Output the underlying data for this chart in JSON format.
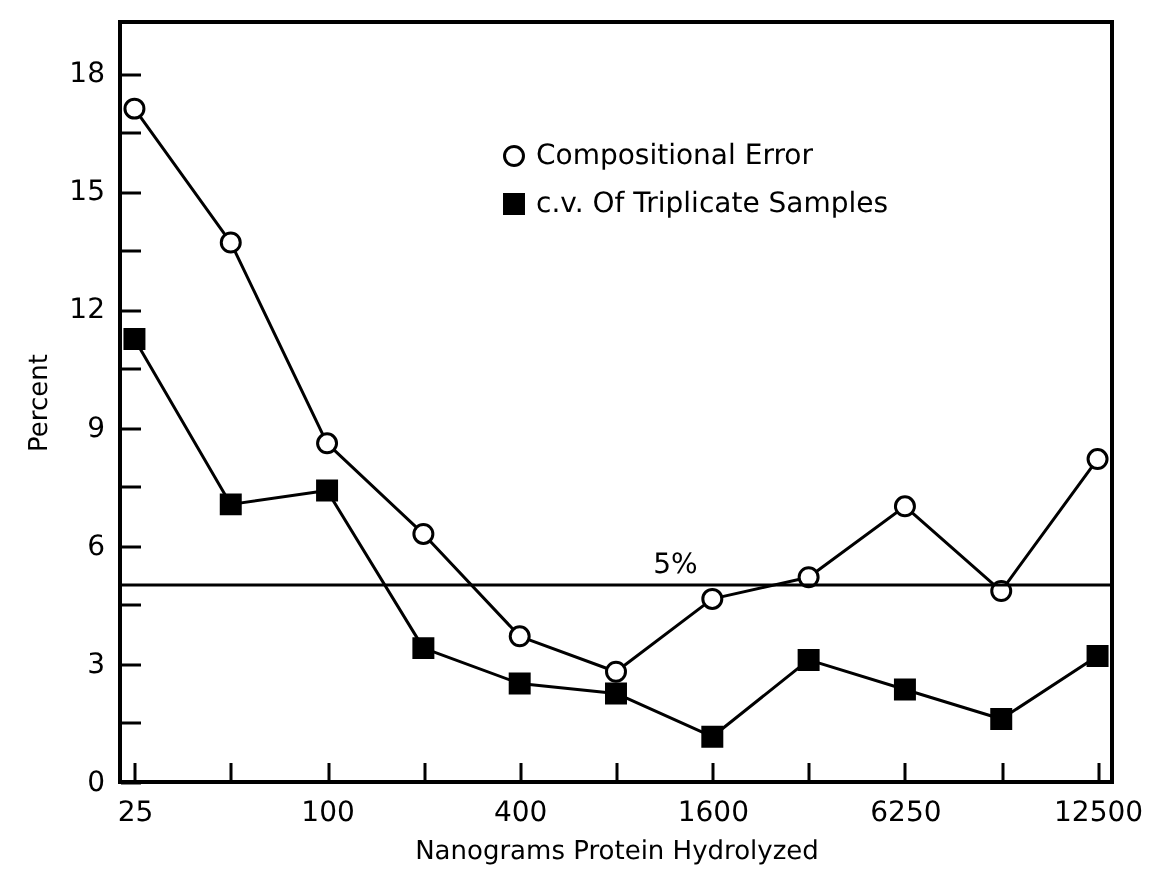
{
  "chart_data": {
    "type": "line",
    "xlabel": "Nanograms Protein Hydrolyzed",
    "ylabel": "Percent",
    "categories": [
      "25",
      null,
      "100",
      null,
      "400",
      null,
      "1600",
      null,
      "6250",
      null,
      "12500"
    ],
    "series": [
      {
        "name": "Compositional Error",
        "color": "#000000",
        "marker": "circle",
        "values": [
          17.1,
          13.7,
          8.6,
          6.3,
          3.7,
          2.8,
          4.65,
          5.2,
          7.0,
          4.85,
          8.2
        ]
      },
      {
        "name": "c.v. Of Triplicate Samples",
        "color": "#000000",
        "marker": "square",
        "values": [
          11.25,
          7.05,
          7.4,
          3.4,
          2.5,
          2.25,
          1.15,
          3.1,
          2.35,
          1.6,
          3.2
        ]
      }
    ],
    "ylim": [
      0,
      19.3
    ],
    "yticks": [
      0,
      {
        "value": 1.5,
        "label": null
      },
      3,
      {
        "value": 4.5,
        "label": null
      },
      6,
      {
        "value": 7.5,
        "label": null
      },
      9,
      {
        "value": 10.5,
        "label": null
      },
      12,
      {
        "value": 13.5,
        "label": null
      },
      15,
      {
        "value": 16.5,
        "label": null
      },
      18
    ],
    "ref_lines": [
      {
        "axis": "y",
        "value": 5,
        "label": "5%",
        "color": "#000000"
      }
    ],
    "legend": "top",
    "grid": false
  }
}
